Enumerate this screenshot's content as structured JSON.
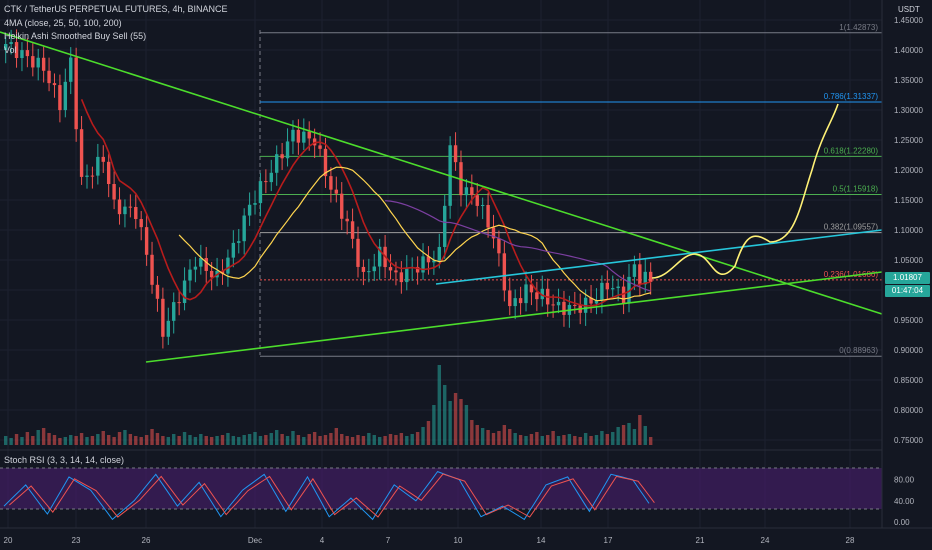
{
  "header": {
    "symbol_line": "CTK / TetherUS PERPETUAL FUTURES, 4h, BINANCE",
    "ma_line": "4MA (close, 25, 50, 100, 200)",
    "ha_line": "Heikin Ashi Smoothed Buy Sell (55)",
    "vol_line": "Vol",
    "rsi_line": "Stoch RSI (3, 3, 14, 14, close)"
  },
  "price_axis": {
    "currency": "USDT",
    "ticks": [
      "1.45000",
      "1.40000",
      "1.35000",
      "1.30000",
      "1.25000",
      "1.20000",
      "1.15000",
      "1.10000",
      "1.05000",
      "1.00000",
      "0.95000",
      "0.90000",
      "0.85000",
      "0.80000",
      "0.75000"
    ],
    "last_price": "1.01807",
    "countdown": "01:47:04"
  },
  "rsi_axis": {
    "ticks": [
      "80.00",
      "40.00",
      "0.00"
    ]
  },
  "time_axis": {
    "ticks": [
      "20",
      "23",
      "26",
      "Dec",
      "4",
      "7",
      "10",
      "14",
      "17",
      "21",
      "24",
      "28"
    ]
  },
  "fib_labels": [
    "1(1.42873)",
    "0.786(1.31337)",
    "0.618(1.22280)",
    "0.5(1.15918)",
    "0.382(1.09557)",
    "0.236(1.01686)",
    "0(0.88963)"
  ],
  "colors": {
    "background": "#131722",
    "up": "#26a69a",
    "down": "#ef5350",
    "trendline": "#4cdd2c",
    "channel": "#26c6da",
    "projection": "#fff176",
    "ma_red": "#b71c1c",
    "ma_yellow": "#ffd54f",
    "ma_purple": "#7b3fa0",
    "rsi_k": "#2196f3",
    "rsi_d": "#ef5350",
    "rsi_band": "#4a1e6e"
  },
  "chart_data": {
    "type": "candlestick",
    "price_range": [
      0.73,
      1.46
    ],
    "fib_levels": [
      {
        "ratio": "1",
        "price": 1.42873,
        "color": "#787b86"
      },
      {
        "ratio": "0.786",
        "price": 1.31337,
        "color": "#2196f3"
      },
      {
        "ratio": "0.618",
        "price": 1.2228,
        "color": "#4caf50"
      },
      {
        "ratio": "0.5",
        "price": 1.15918,
        "color": "#4caf50"
      },
      {
        "ratio": "0.382",
        "price": 1.09557,
        "color": "#9e9e9e"
      },
      {
        "ratio": "0.236",
        "price": 1.01686,
        "color": "#ef5350"
      },
      {
        "ratio": "0",
        "price": 0.88963,
        "color": "#787b86"
      }
    ],
    "anchors": [
      [
        0,
        1.41
      ],
      [
        7,
        1.37
      ],
      [
        10,
        1.31
      ],
      [
        12,
        1.38
      ],
      [
        14,
        1.18
      ],
      [
        18,
        1.22
      ],
      [
        20,
        1.14
      ],
      [
        24,
        1.13
      ],
      [
        26,
        1.06
      ],
      [
        29,
        0.93
      ],
      [
        32,
        0.99
      ],
      [
        35,
        1.05
      ],
      [
        39,
        1.02
      ],
      [
        42,
        1.07
      ],
      [
        45,
        1.14
      ],
      [
        49,
        1.2
      ],
      [
        53,
        1.26
      ],
      [
        57,
        1.25
      ],
      [
        60,
        1.17
      ],
      [
        63,
        1.11
      ],
      [
        66,
        1.02
      ],
      [
        69,
        1.06
      ],
      [
        72,
        1.02
      ],
      [
        76,
        1.04
      ],
      [
        80,
        1.06
      ],
      [
        82,
        1.24
      ],
      [
        84,
        1.17
      ],
      [
        87,
        1.15
      ],
      [
        90,
        1.09
      ],
      [
        93,
        0.97
      ],
      [
        96,
        1.0
      ],
      [
        99,
        0.99
      ],
      [
        102,
        0.97
      ],
      [
        105,
        0.97
      ],
      [
        108,
        0.98
      ],
      [
        111,
        1.01
      ],
      [
        114,
        0.99
      ],
      [
        116,
        1.04
      ],
      [
        117,
        1.02
      ],
      [
        119,
        1.018
      ]
    ],
    "volume_heights": [
      9,
      7,
      11,
      8,
      13,
      9,
      15,
      17,
      12,
      10,
      7,
      8,
      10,
      9,
      12,
      8,
      9,
      11,
      14,
      10,
      8,
      13,
      15,
      11,
      9,
      8,
      10,
      16,
      12,
      9,
      8,
      11,
      9,
      13,
      10,
      8,
      11,
      9,
      8,
      9,
      10,
      12,
      9,
      8,
      10,
      11,
      13,
      9,
      10,
      12,
      15,
      11,
      9,
      14,
      10,
      8,
      11,
      13,
      9,
      10,
      12,
      17,
      11,
      9,
      8,
      10,
      9,
      12,
      10,
      8,
      9,
      11,
      10,
      12,
      9,
      11,
      13,
      18,
      24,
      40,
      80,
      60,
      44,
      52,
      46,
      40,
      25,
      20,
      17,
      15,
      12,
      14,
      20,
      16,
      12,
      10,
      9,
      11,
      13,
      9,
      10,
      14,
      9,
      10,
      11,
      9,
      8,
      12,
      9,
      10,
      14,
      11,
      13,
      18,
      20,
      22,
      16,
      30,
      19,
      8
    ],
    "rsi_k_anchors": [
      [
        0,
        30
      ],
      [
        4,
        70
      ],
      [
        8,
        15
      ],
      [
        12,
        85
      ],
      [
        16,
        60
      ],
      [
        20,
        5
      ],
      [
        24,
        40
      ],
      [
        28,
        90
      ],
      [
        32,
        30
      ],
      [
        36,
        75
      ],
      [
        40,
        10
      ],
      [
        44,
        60
      ],
      [
        48,
        90
      ],
      [
        52,
        20
      ],
      [
        56,
        85
      ],
      [
        60,
        10
      ],
      [
        64,
        45
      ],
      [
        68,
        5
      ],
      [
        72,
        70
      ],
      [
        76,
        40
      ],
      [
        80,
        95
      ],
      [
        84,
        80
      ],
      [
        88,
        10
      ],
      [
        92,
        30
      ],
      [
        96,
        5
      ],
      [
        100,
        70
      ],
      [
        104,
        85
      ],
      [
        108,
        20
      ],
      [
        112,
        90
      ],
      [
        116,
        80
      ],
      [
        120,
        20
      ]
    ]
  }
}
